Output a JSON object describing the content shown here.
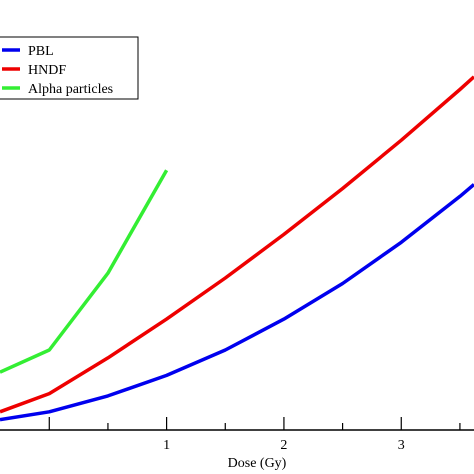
{
  "chart_data": {
    "type": "line",
    "xlabel": "Dose (Gy)",
    "ylabel": "",
    "x_ticks": [
      1,
      2,
      3
    ],
    "xlim": [
      -0.42,
      3.62
    ],
    "ylim": [
      -0.13,
      5.3
    ],
    "legend_position": "top-left",
    "grid": false,
    "series": [
      {
        "name": "PBL",
        "color": "#0000ee",
        "x": [
          -0.42,
          0,
          0.5,
          1,
          1.5,
          2,
          2.5,
          3,
          3.5,
          3.62
        ],
        "y": [
          0.0,
          0.1,
          0.3,
          0.56,
          0.88,
          1.27,
          1.72,
          2.24,
          2.82,
          2.97
        ]
      },
      {
        "name": "HNDF",
        "color": "#ee0000",
        "x": [
          -0.42,
          0,
          0.5,
          1,
          1.5,
          2,
          2.5,
          3,
          3.5,
          3.62
        ],
        "y": [
          0.1,
          0.33,
          0.78,
          1.27,
          1.79,
          2.34,
          2.92,
          3.53,
          4.17,
          4.33
        ]
      },
      {
        "name": "Alpha particles",
        "color": "#33ee33",
        "x": [
          -0.42,
          0,
          0.5,
          1
        ],
        "y": [
          0.6,
          0.88,
          1.85,
          3.15
        ]
      }
    ]
  }
}
